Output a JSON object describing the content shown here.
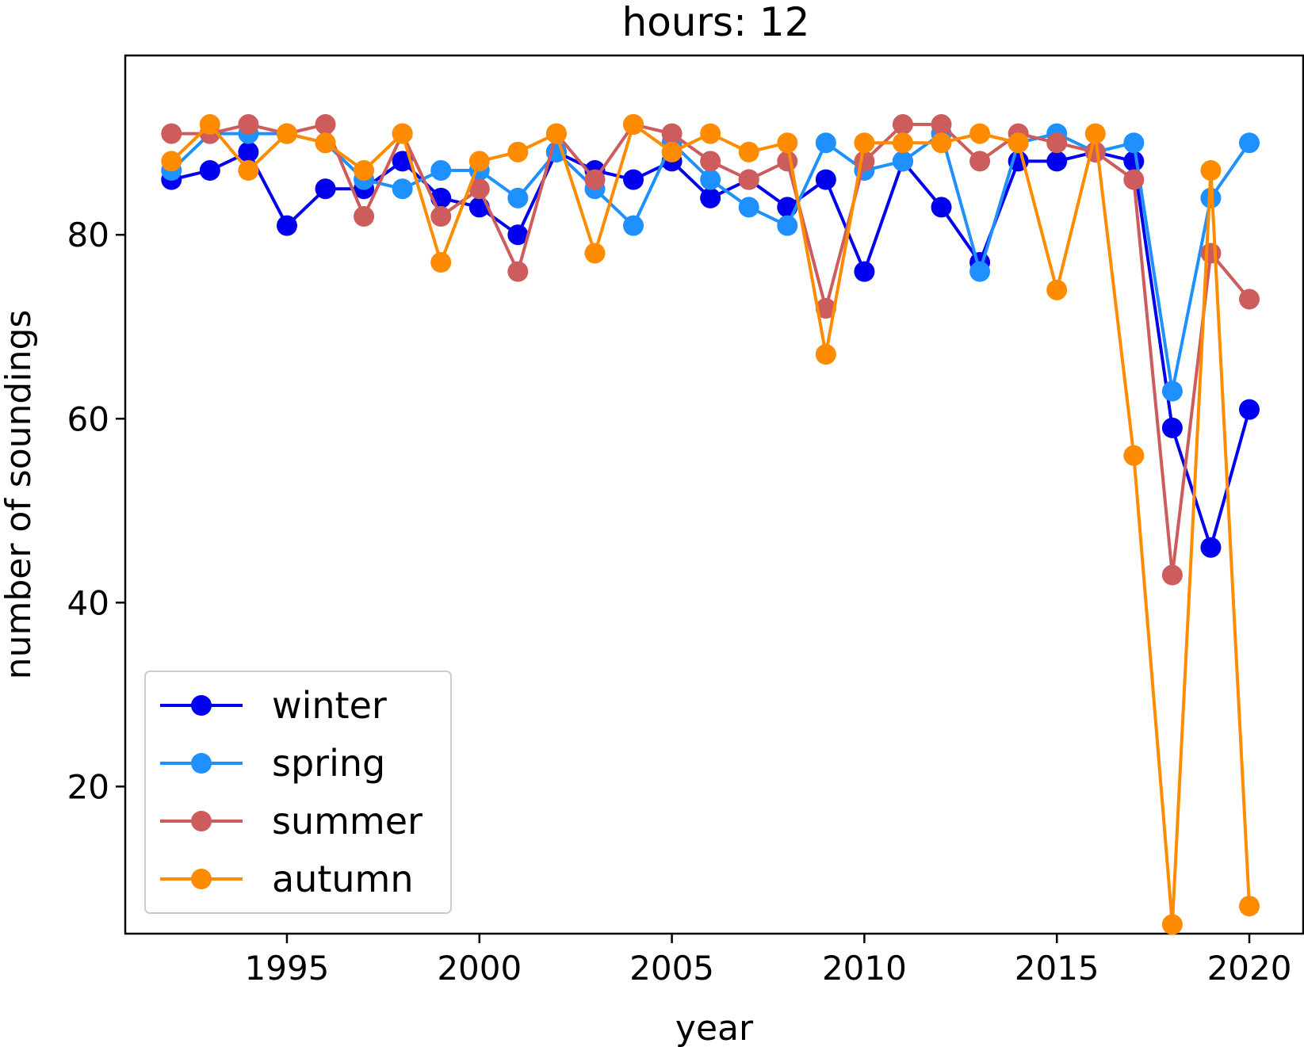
{
  "chart_data": {
    "type": "line",
    "title": "hours: 12",
    "xlabel": "year",
    "ylabel": "number of soundings",
    "xlim": [
      1990.8,
      2021.4
    ],
    "ylim": [
      4,
      99.5
    ],
    "xticks": [
      1995,
      2000,
      2005,
      2010,
      2015,
      2020
    ],
    "yticks": [
      20,
      40,
      60,
      80
    ],
    "grid": false,
    "legend_position": "lower-left",
    "x": [
      1992,
      1993,
      1994,
      1995,
      1996,
      1997,
      1998,
      1999,
      2000,
      2001,
      2002,
      2003,
      2004,
      2005,
      2006,
      2007,
      2008,
      2009,
      2010,
      2011,
      2012,
      2013,
      2014,
      2015,
      2016,
      2017,
      2018,
      2019,
      2020
    ],
    "series": [
      {
        "name": "winter",
        "color": "#0000ee",
        "values": [
          86,
          87,
          89,
          81,
          85,
          85,
          88,
          84,
          83,
          80,
          89,
          87,
          86,
          88,
          84,
          86,
          83,
          86,
          76,
          88,
          83,
          77,
          88,
          88,
          89,
          88,
          59,
          46,
          61
        ]
      },
      {
        "name": "spring",
        "color": "#1e90ff",
        "values": [
          87,
          91,
          91,
          91,
          90,
          86,
          85,
          87,
          87,
          84,
          89,
          85,
          81,
          90,
          86,
          83,
          81,
          90,
          87,
          88,
          91,
          76,
          90,
          91,
          89,
          90,
          63,
          84,
          90
        ]
      },
      {
        "name": "summer",
        "color": "#cd5c5c",
        "values": [
          91,
          91,
          92,
          91,
          92,
          82,
          91,
          82,
          85,
          76,
          91,
          86,
          92,
          91,
          88,
          86,
          88,
          72,
          88,
          92,
          92,
          88,
          91,
          90,
          89,
          86,
          43,
          78,
          73
        ]
      },
      {
        "name": "autumn",
        "color": "#ff8c00",
        "values": [
          88,
          92,
          87,
          91,
          90,
          87,
          91,
          77,
          88,
          89,
          91,
          78,
          92,
          89,
          91,
          89,
          90,
          67,
          90,
          90,
          90,
          91,
          90,
          74,
          91,
          56,
          5,
          87,
          7
        ]
      }
    ]
  }
}
